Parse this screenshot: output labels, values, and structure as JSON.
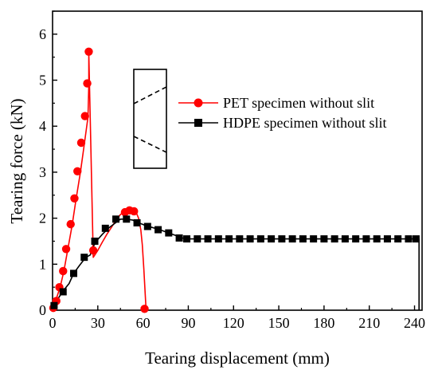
{
  "chart_data": {
    "type": "line",
    "title": "",
    "xlabel": "Tearing displacement (mm)",
    "ylabel": "Tearing force (kN)",
    "xlim": [
      0,
      245
    ],
    "ylim": [
      0,
      6.5
    ],
    "xticks": [
      0,
      30,
      60,
      90,
      120,
      150,
      180,
      210,
      240
    ],
    "yticks": [
      0,
      1,
      2,
      3,
      4,
      5,
      6
    ],
    "legend_position": "top-right",
    "series": [
      {
        "name": "PET specimen without slit",
        "color": "#ff0000",
        "marker": "circle",
        "x": [
          0,
          2.5,
          5,
          7.5,
          10,
          13,
          15.5,
          18.5,
          21,
          23.5,
          24,
          24,
          27,
          30,
          33,
          36,
          39,
          42,
          45,
          48,
          50,
          52,
          54,
          55.5,
          57,
          58.5,
          59.5,
          60.5,
          61.5,
          62
        ],
        "y": [
          0.05,
          0.25,
          0.5,
          0.85,
          1.3,
          1.85,
          2.4,
          3.0,
          3.6,
          4.2,
          4.9,
          5.6,
          1.15,
          1.3,
          1.48,
          1.65,
          1.8,
          1.95,
          2.08,
          2.15,
          2.17,
          2.18,
          2.17,
          2.12,
          2.0,
          1.75,
          1.42,
          0.9,
          0.3,
          0.02
        ],
        "markers": [
          {
            "x": 0.5,
            "y": 0.05
          },
          {
            "x": 2.5,
            "y": 0.2
          },
          {
            "x": 4.5,
            "y": 0.5
          },
          {
            "x": 7,
            "y": 0.85
          },
          {
            "x": 9,
            "y": 1.33
          },
          {
            "x": 12,
            "y": 1.87
          },
          {
            "x": 14.5,
            "y": 2.43
          },
          {
            "x": 16.5,
            "y": 3.02
          },
          {
            "x": 19,
            "y": 3.64
          },
          {
            "x": 21.5,
            "y": 4.22
          },
          {
            "x": 23,
            "y": 4.93
          },
          {
            "x": 24,
            "y": 5.62
          },
          {
            "x": 27,
            "y": 1.3
          },
          {
            "x": 48,
            "y": 2.13
          },
          {
            "x": 51,
            "y": 2.17
          },
          {
            "x": 54,
            "y": 2.15
          },
          {
            "x": 61,
            "y": 0.03
          }
        ]
      },
      {
        "name": "HDPE specimen without slit",
        "color": "#000000",
        "marker": "square",
        "x": [
          0,
          3,
          7,
          11,
          14,
          18,
          22,
          25,
          26,
          29,
          33,
          37,
          41,
          45,
          49,
          53,
          57,
          61,
          66,
          71,
          77,
          82,
          88,
          243,
          243
        ],
        "y": [
          0.08,
          0.22,
          0.42,
          0.58,
          0.8,
          0.98,
          1.15,
          1.2,
          1.32,
          1.5,
          1.65,
          1.78,
          1.88,
          1.98,
          1.98,
          1.96,
          1.9,
          1.85,
          1.8,
          1.75,
          1.68,
          1.62,
          1.55,
          1.55,
          0.0
        ],
        "markers": [
          {
            "x": 1,
            "y": 0.1
          },
          {
            "x": 7,
            "y": 0.4
          },
          {
            "x": 14,
            "y": 0.8
          },
          {
            "x": 21,
            "y": 1.15
          },
          {
            "x": 28,
            "y": 1.5
          },
          {
            "x": 35,
            "y": 1.78
          },
          {
            "x": 42,
            "y": 1.98
          },
          {
            "x": 49,
            "y": 1.98
          },
          {
            "x": 56,
            "y": 1.9
          },
          {
            "x": 63,
            "y": 1.82
          },
          {
            "x": 70,
            "y": 1.75
          },
          {
            "x": 77,
            "y": 1.68
          },
          {
            "x": 84,
            "y": 1.57
          },
          {
            "x": 89,
            "y": 1.55
          },
          {
            "x": 96,
            "y": 1.55
          },
          {
            "x": 103,
            "y": 1.55
          },
          {
            "x": 110,
            "y": 1.55
          },
          {
            "x": 117,
            "y": 1.55
          },
          {
            "x": 124,
            "y": 1.55
          },
          {
            "x": 131,
            "y": 1.55
          },
          {
            "x": 138,
            "y": 1.55
          },
          {
            "x": 145,
            "y": 1.55
          },
          {
            "x": 152,
            "y": 1.55
          },
          {
            "x": 159,
            "y": 1.55
          },
          {
            "x": 166,
            "y": 1.55
          },
          {
            "x": 173,
            "y": 1.55
          },
          {
            "x": 180,
            "y": 1.55
          },
          {
            "x": 187,
            "y": 1.55
          },
          {
            "x": 194,
            "y": 1.55
          },
          {
            "x": 201,
            "y": 1.55
          },
          {
            "x": 208,
            "y": 1.55
          },
          {
            "x": 215,
            "y": 1.55
          },
          {
            "x": 222,
            "y": 1.55
          },
          {
            "x": 229,
            "y": 1.55
          },
          {
            "x": 236,
            "y": 1.55
          },
          {
            "x": 241,
            "y": 1.55
          }
        ]
      }
    ]
  }
}
